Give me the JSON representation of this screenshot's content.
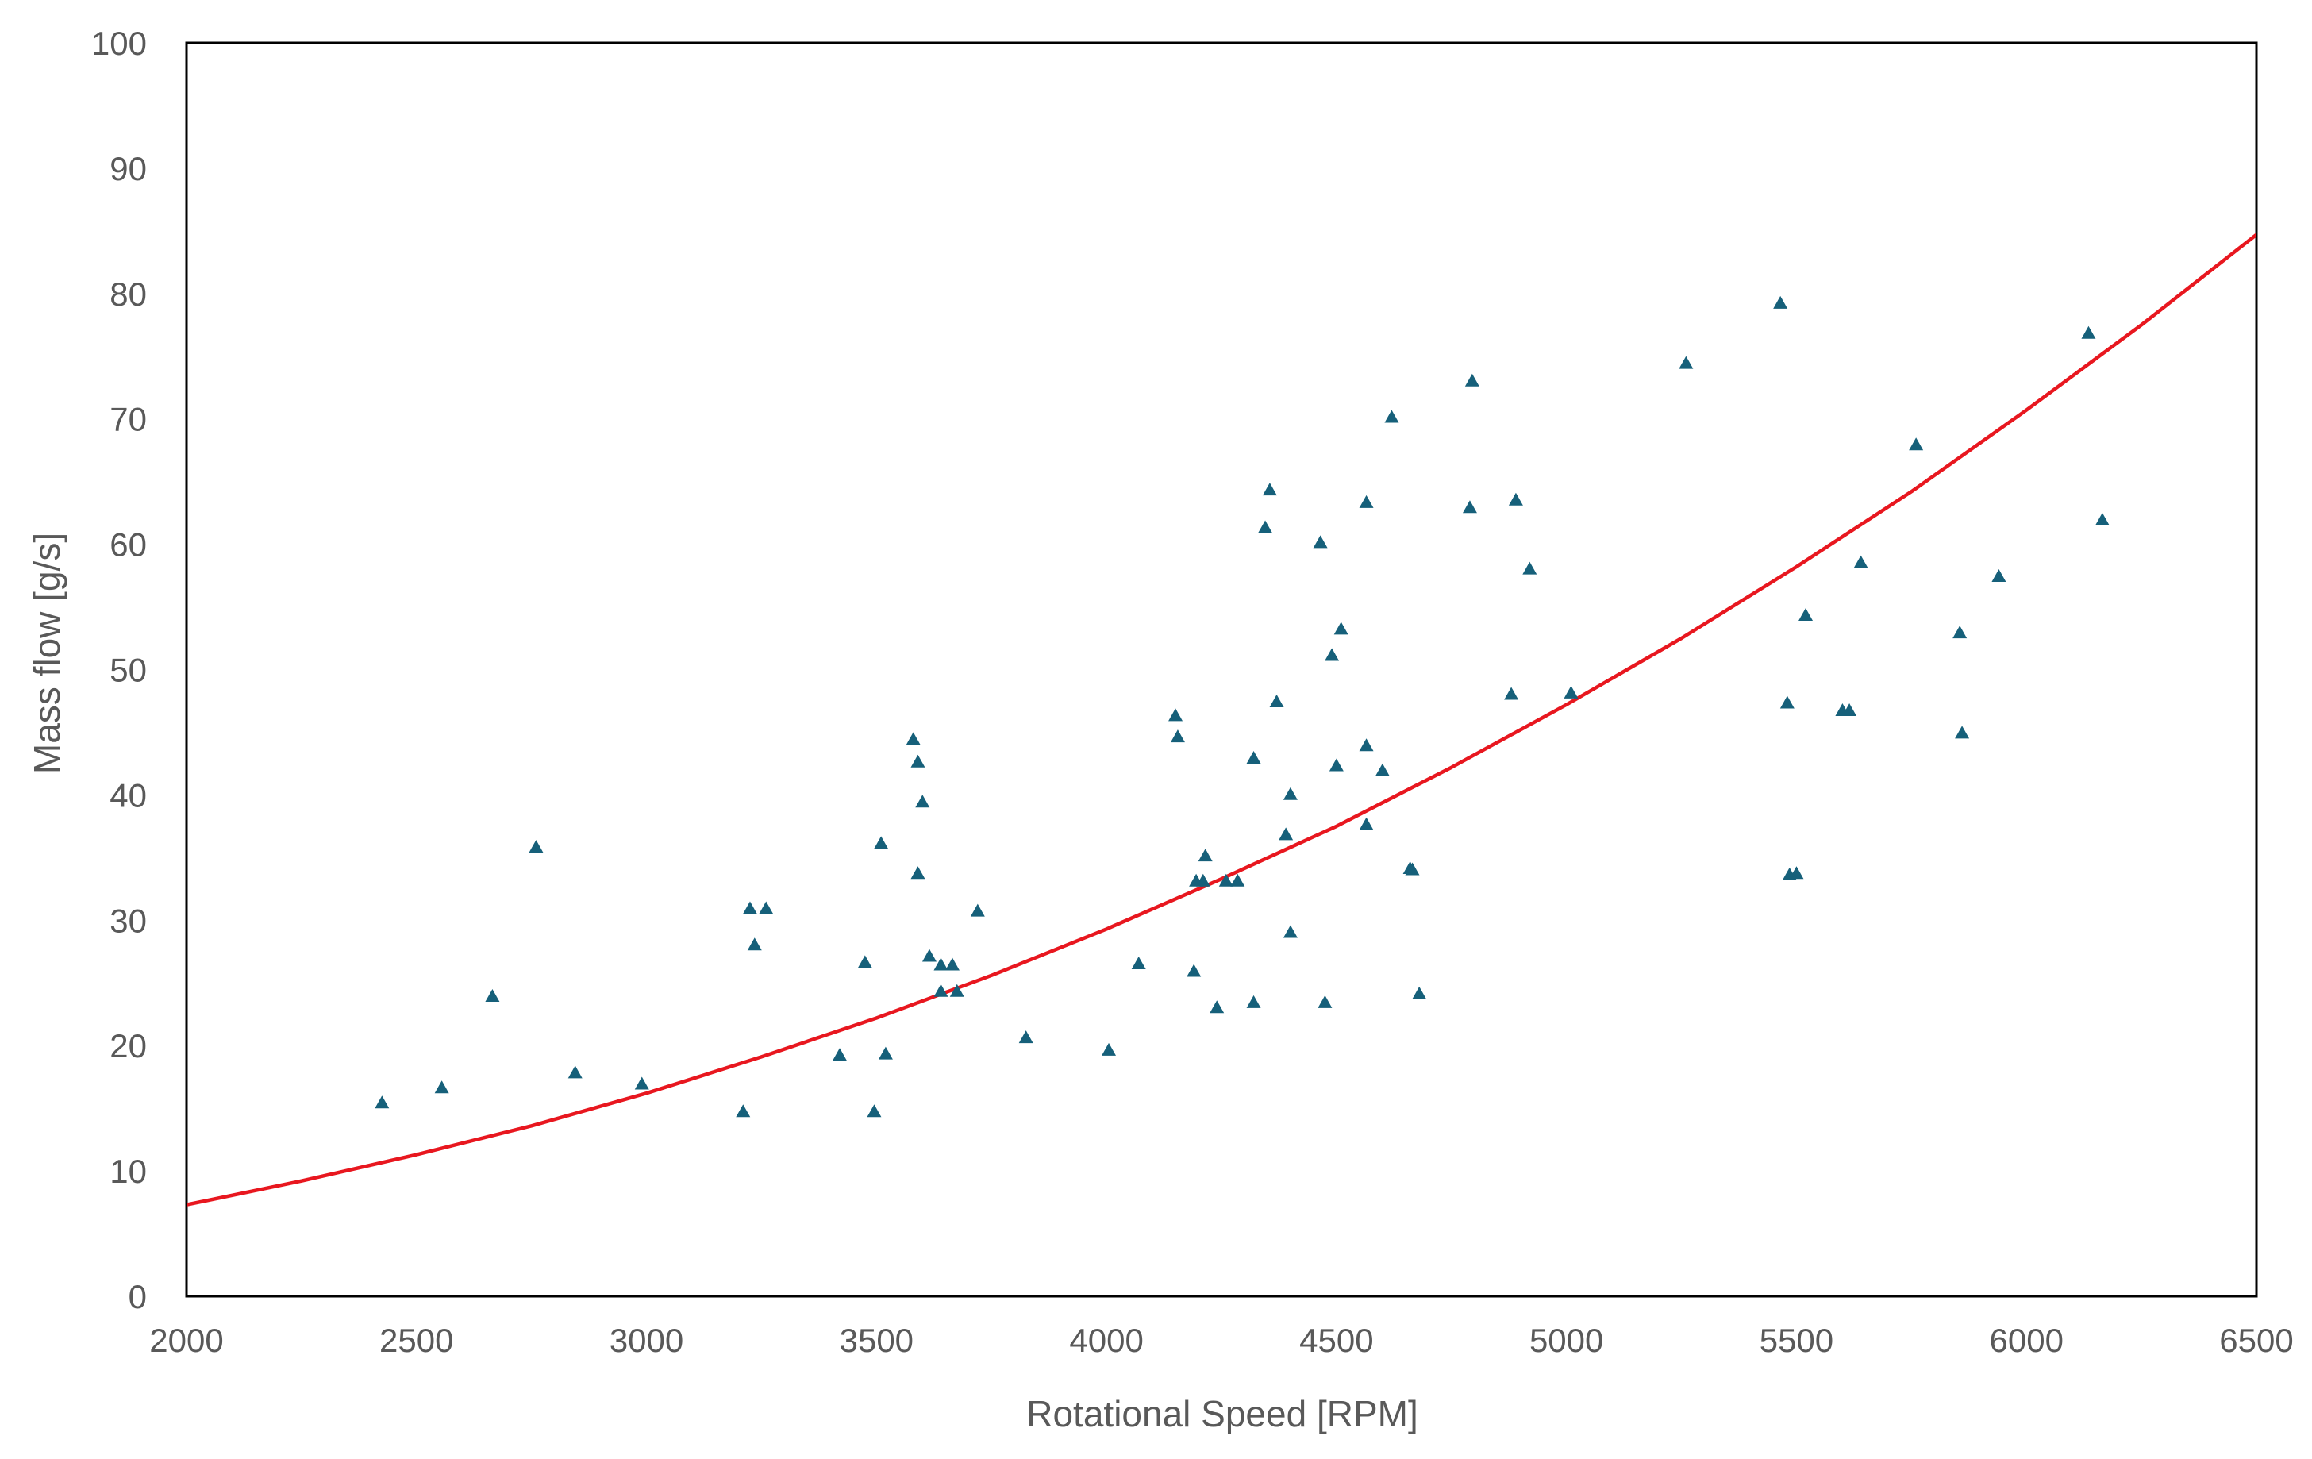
{
  "chart_data": {
    "type": "scatter",
    "xlabel": "Rotational Speed [RPM]",
    "ylabel": "Mass flow [g/s]",
    "xlim": [
      2000,
      6500
    ],
    "ylim": [
      0,
      100
    ],
    "x_ticks": [
      2000,
      2500,
      3000,
      3500,
      4000,
      4500,
      5000,
      5500,
      6000,
      6500
    ],
    "y_ticks": [
      0,
      10,
      20,
      30,
      40,
      50,
      60,
      70,
      80,
      90,
      100
    ],
    "x_tick_labels": [
      "2000",
      "2500",
      "3000",
      "3500",
      "4000",
      "4500",
      "5000",
      "5500",
      "6000",
      "6500"
    ],
    "y_tick_labels": [
      "0",
      "10",
      "20",
      "30",
      "40",
      "50",
      "60",
      "70",
      "80",
      "90",
      "100"
    ],
    "grid": false,
    "legend": "none",
    "colors": {
      "points": "#16607a",
      "fit": "#e8171f",
      "axes": "#000000",
      "text": "#595959"
    },
    "marker": "triangle",
    "series": [
      {
        "kind": "scatter",
        "points": [
          [
            2425,
            15.4
          ],
          [
            2555,
            16.6
          ],
          [
            2665,
            23.9
          ],
          [
            2760,
            35.8
          ],
          [
            2845,
            17.8
          ],
          [
            2990,
            16.9
          ],
          [
            3210,
            14.7
          ],
          [
            3225,
            30.9
          ],
          [
            3235,
            28.0
          ],
          [
            3260,
            30.9
          ],
          [
            3420,
            19.2
          ],
          [
            3475,
            26.6
          ],
          [
            3495,
            14.7
          ],
          [
            3510,
            36.1
          ],
          [
            3520,
            19.3
          ],
          [
            3580,
            44.4
          ],
          [
            3590,
            42.6
          ],
          [
            3590,
            33.7
          ],
          [
            3600,
            39.4
          ],
          [
            3615,
            27.1
          ],
          [
            3640,
            24.3
          ],
          [
            3640,
            26.4
          ],
          [
            3665,
            26.4
          ],
          [
            3675,
            24.3
          ],
          [
            3720,
            30.7
          ],
          [
            3825,
            20.6
          ],
          [
            4005,
            19.6
          ],
          [
            4070,
            26.5
          ],
          [
            4150,
            46.3
          ],
          [
            4155,
            44.6
          ],
          [
            4190,
            25.9
          ],
          [
            4195,
            33.1
          ],
          [
            4210,
            33.1
          ],
          [
            4215,
            35.1
          ],
          [
            4240,
            23.0
          ],
          [
            4260,
            33.1
          ],
          [
            4285,
            33.1
          ],
          [
            4320,
            42.9
          ],
          [
            4320,
            23.4
          ],
          [
            4345,
            61.3
          ],
          [
            4355,
            64.3
          ],
          [
            4370,
            47.4
          ],
          [
            4390,
            36.8
          ],
          [
            4400,
            40.0
          ],
          [
            4400,
            29.0
          ],
          [
            4465,
            60.1
          ],
          [
            4475,
            23.4
          ],
          [
            4490,
            51.1
          ],
          [
            4500,
            42.3
          ],
          [
            4510,
            53.2
          ],
          [
            4565,
            63.3
          ],
          [
            4565,
            37.6
          ],
          [
            4565,
            43.9
          ],
          [
            4600,
            41.9
          ],
          [
            4620,
            70.1
          ],
          [
            4660,
            34.1
          ],
          [
            4665,
            34.0
          ],
          [
            4680,
            24.1
          ],
          [
            4790,
            62.9
          ],
          [
            4795,
            73.0
          ],
          [
            4880,
            48.0
          ],
          [
            4890,
            63.5
          ],
          [
            4920,
            58.0
          ],
          [
            5010,
            48.1
          ],
          [
            5260,
            74.4
          ],
          [
            5465,
            79.2
          ],
          [
            5480,
            47.3
          ],
          [
            5485,
            33.6
          ],
          [
            5500,
            33.7
          ],
          [
            5520,
            54.3
          ],
          [
            5600,
            46.7
          ],
          [
            5615,
            46.7
          ],
          [
            5640,
            58.5
          ],
          [
            5760,
            67.9
          ],
          [
            5855,
            52.9
          ],
          [
            5860,
            44.9
          ],
          [
            5940,
            57.4
          ],
          [
            6135,
            76.8
          ],
          [
            6165,
            61.9
          ]
        ]
      },
      {
        "kind": "fit-line",
        "x": [
          2000,
          2250,
          2500,
          2750,
          3000,
          3250,
          3500,
          3750,
          4000,
          4250,
          4500,
          4750,
          5000,
          5250,
          5500,
          5750,
          6000,
          6250,
          6500
        ],
        "y": [
          7.3,
          9.2,
          11.3,
          13.6,
          16.2,
          19.1,
          22.2,
          25.6,
          29.3,
          33.3,
          37.5,
          42.2,
          47.2,
          52.5,
          58.2,
          64.2,
          70.7,
          77.5,
          84.7
        ]
      }
    ]
  }
}
